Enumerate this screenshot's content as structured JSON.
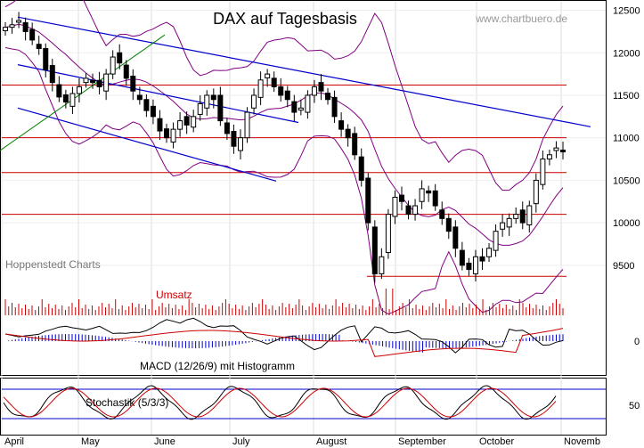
{
  "chart_data": {
    "type": "candlestick",
    "title": "DAX auf Tagesbasis",
    "watermark": "www.chartbuero.de",
    "source_label": "Hoppenstedt Charts",
    "volume_label": "Umsatz",
    "macd_label": "MACD (12/26/9) mit Histogramm",
    "stoch_label": "Stochastik (5/3/3)",
    "x_ticks": [
      "April",
      "May",
      "June",
      "July",
      "August",
      "September",
      "October",
      "Novemb"
    ],
    "price_axis": {
      "ylim": [
        9100,
        12600
      ],
      "ticks": [
        "12500",
        "12000",
        "11500",
        "11000",
        "10500",
        "10000",
        "9500"
      ]
    },
    "macd_axis": {
      "ticks": [
        "0"
      ]
    },
    "stoch_axis": {
      "ticks": [
        "50"
      ]
    },
    "horizontal_levels": [
      11620,
      11000,
      10590,
      10100,
      9370
    ],
    "price_close_series": [
      12300,
      12330,
      12380,
      12250,
      12150,
      12050,
      11800,
      11650,
      11480,
      11420,
      11520,
      11600,
      11700,
      11650,
      11600,
      11750,
      11950,
      11880,
      11700,
      11550,
      11450,
      11320,
      11250,
      11080,
      11000,
      11100,
      11200,
      11150,
      11250,
      11400,
      11500,
      11450,
      11200,
      11050,
      10900,
      11000,
      11300,
      11500,
      11680,
      11750,
      11600,
      11500,
      11450,
      11300,
      11350,
      11500,
      11600,
      11550,
      11450,
      11250,
      11100,
      11000,
      10800,
      10500,
      10000,
      9400,
      9600,
      10100,
      10300,
      10250,
      10100,
      10200,
      10400,
      10350,
      10200,
      10050,
      9900,
      9700,
      9500,
      9450,
      9600,
      9550,
      9700,
      9900,
      10000,
      10050,
      10100,
      10000,
      10200,
      10500,
      10750,
      10800,
      10880,
      10850
    ],
    "colors": {
      "trendline": "#0000cc",
      "level": "#cc0000",
      "bollinger": "#800080",
      "green": "#008000",
      "volume": "#cc0000",
      "histogram": "#0000cc"
    }
  }
}
